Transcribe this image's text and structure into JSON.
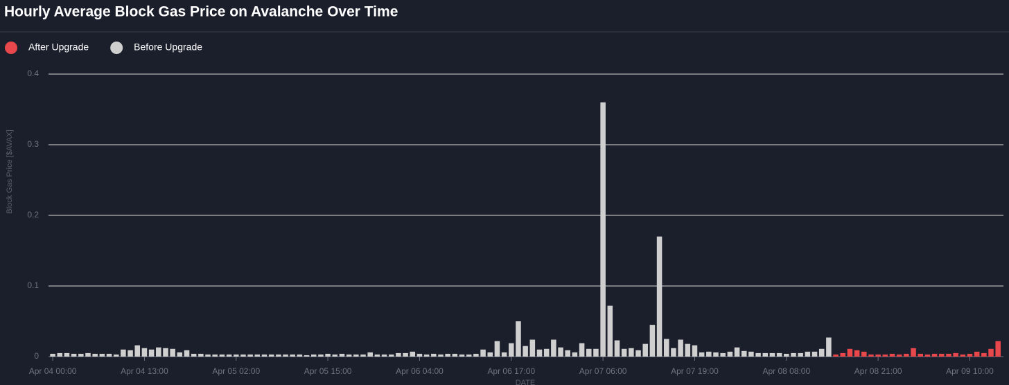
{
  "chart_data": {
    "type": "bar",
    "title": "Hourly Average Block Gas Price on Avalanche Over Time",
    "x_label": "DATE",
    "y_label": "Block Gas Price [$AVAX]",
    "categories": [
      "Apr 04 00:00",
      null,
      null,
      null,
      null,
      null,
      null,
      null,
      null,
      null,
      null,
      null,
      null,
      "Apr 04 13:00",
      null,
      null,
      null,
      null,
      null,
      null,
      null,
      null,
      null,
      null,
      null,
      null,
      "Apr 05 02:00",
      null,
      null,
      null,
      null,
      null,
      null,
      null,
      null,
      null,
      null,
      null,
      null,
      "Apr 05 15:00",
      null,
      null,
      null,
      null,
      null,
      null,
      null,
      null,
      null,
      null,
      null,
      null,
      "Apr 06 04:00",
      null,
      null,
      null,
      null,
      null,
      null,
      null,
      null,
      null,
      null,
      null,
      null,
      "Apr 06 17:00",
      null,
      null,
      null,
      null,
      null,
      null,
      null,
      null,
      null,
      null,
      null,
      null,
      "Apr 07 06:00",
      null,
      null,
      null,
      null,
      null,
      null,
      null,
      null,
      null,
      null,
      null,
      null,
      "Apr 07 19:00",
      null,
      null,
      null,
      null,
      null,
      null,
      null,
      null,
      null,
      null,
      null,
      null,
      "Apr 08 08:00",
      null,
      null,
      null,
      null,
      null,
      null,
      null,
      null,
      null,
      null,
      null,
      null,
      "Apr 08 21:00",
      null,
      null,
      null,
      null,
      null,
      null,
      null,
      null,
      null,
      null,
      null,
      null,
      "Apr 09 10:00",
      null,
      null,
      null,
      null
    ],
    "series": [
      {
        "name": "After Upgrade",
        "color": "#e8474c",
        "values": [
          null,
          null,
          null,
          null,
          null,
          null,
          null,
          null,
          null,
          null,
          null,
          null,
          null,
          null,
          null,
          null,
          null,
          null,
          null,
          null,
          null,
          null,
          null,
          null,
          null,
          null,
          null,
          null,
          null,
          null,
          null,
          null,
          null,
          null,
          null,
          null,
          null,
          null,
          null,
          null,
          null,
          null,
          null,
          null,
          null,
          null,
          null,
          null,
          null,
          null,
          null,
          null,
          null,
          null,
          null,
          null,
          null,
          null,
          null,
          null,
          null,
          null,
          null,
          null,
          null,
          null,
          null,
          null,
          null,
          null,
          null,
          null,
          null,
          null,
          null,
          null,
          null,
          null,
          null,
          null,
          null,
          null,
          null,
          null,
          null,
          null,
          null,
          null,
          null,
          null,
          null,
          null,
          null,
          null,
          null,
          null,
          null,
          null,
          null,
          null,
          null,
          null,
          null,
          null,
          null,
          null,
          null,
          null,
          null,
          null,
          null,
          0.003,
          0.005,
          0.011,
          0.009,
          0.007,
          0.003,
          0.003,
          0.003,
          0.004,
          0.003,
          0.004,
          0.012,
          0.004,
          0.003,
          0.004,
          0.004,
          0.004,
          0.005,
          0.003,
          0.004,
          0.007,
          0.005,
          0.011,
          0.022
        ]
      },
      {
        "name": "Before Upgrade",
        "color": "#cfcfcf",
        "values": [
          0.004,
          0.005,
          0.005,
          0.004,
          0.004,
          0.005,
          0.004,
          0.004,
          0.004,
          0.003,
          0.01,
          0.009,
          0.016,
          0.012,
          0.01,
          0.013,
          0.012,
          0.011,
          0.006,
          0.009,
          0.004,
          0.004,
          0.003,
          0.003,
          0.003,
          0.003,
          0.003,
          0.003,
          0.003,
          0.003,
          0.003,
          0.003,
          0.003,
          0.003,
          0.003,
          0.003,
          0.002,
          0.003,
          0.003,
          0.004,
          0.003,
          0.004,
          0.003,
          0.003,
          0.003,
          0.006,
          0.003,
          0.003,
          0.003,
          0.005,
          0.005,
          0.007,
          0.004,
          0.003,
          0.004,
          0.003,
          0.004,
          0.004,
          0.003,
          0.003,
          0.004,
          0.01,
          0.006,
          0.022,
          0.006,
          0.019,
          0.05,
          0.015,
          0.024,
          0.01,
          0.011,
          0.024,
          0.013,
          0.009,
          0.006,
          0.019,
          0.011,
          0.011,
          0.36,
          0.072,
          0.023,
          0.011,
          0.012,
          0.009,
          0.018,
          0.045,
          0.17,
          0.025,
          0.012,
          0.024,
          0.018,
          0.016,
          0.006,
          0.007,
          0.006,
          0.005,
          0.007,
          0.013,
          0.008,
          0.007,
          0.005,
          0.005,
          0.005,
          0.005,
          0.004,
          0.005,
          0.005,
          0.007,
          0.007,
          0.011,
          0.027,
          null,
          null,
          null,
          null,
          null,
          null,
          null,
          null,
          null,
          null,
          null,
          null,
          null,
          null,
          null,
          null,
          null,
          null,
          null,
          null,
          null,
          null,
          null,
          null
        ]
      }
    ],
    "ylim": [
      0,
      0.4
    ],
    "yticks": [
      0,
      0.1,
      0.2,
      0.3,
      0.4
    ],
    "grid": true
  }
}
